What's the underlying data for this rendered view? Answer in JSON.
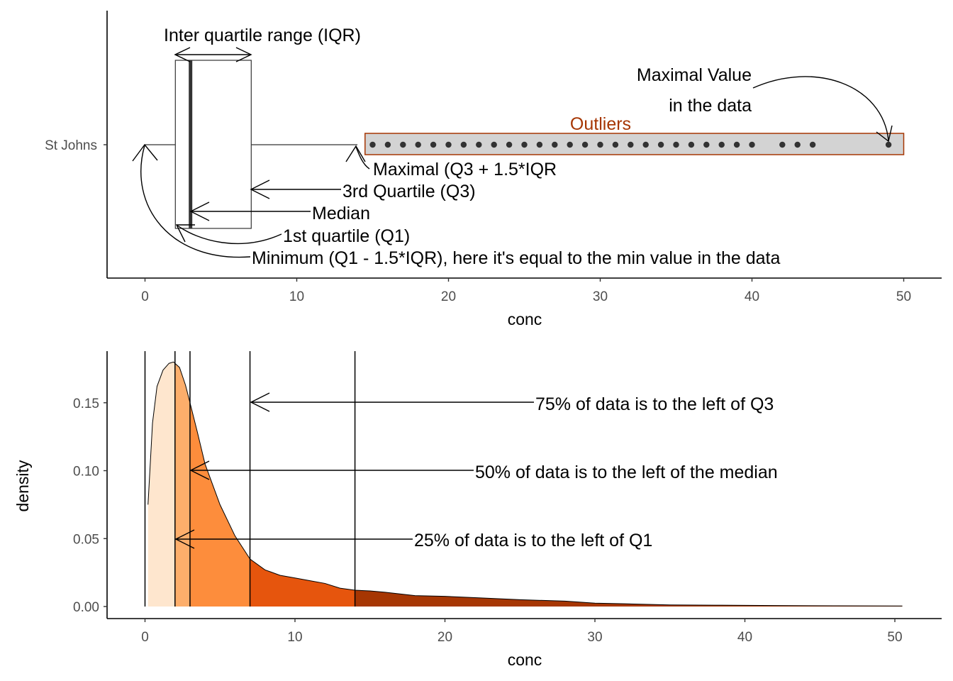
{
  "chart_data": [
    {
      "type": "boxplot",
      "category": "St Johns",
      "xlabel": "conc",
      "xlim": [
        -2.5,
        52.5
      ],
      "xticks": [
        0,
        10,
        20,
        30,
        40,
        50
      ],
      "box": {
        "min": 0,
        "q1": 2,
        "median": 3,
        "q3": 7,
        "max_whisker": 14
      },
      "outliers": [
        15,
        16,
        17,
        18,
        19,
        20,
        21,
        22,
        23,
        24,
        25,
        26,
        27,
        28,
        29,
        30,
        31,
        32,
        33,
        34,
        35,
        36,
        37,
        38,
        39,
        40,
        42,
        43,
        44,
        49
      ],
      "outlier_region": [
        14.5,
        50
      ],
      "colors": {
        "outlier_label": "#A63603",
        "outlier_fill": "#d3d3d3",
        "outlier_border": "#A63603",
        "points": "#333333"
      },
      "annotations": {
        "iqr": "Inter quartile range (IQR)",
        "max_value_line1": "Maximal Value",
        "max_value_line2": "in the data",
        "outliers": "Outliers",
        "maximal": "Maximal (Q3 + 1.5*IQR",
        "q3": "3rd Quartile (Q3)",
        "median": "Median",
        "q1": "1st quartile (Q1)",
        "minimum": "Minimum (Q1 - 1.5*IQR), here it's equal to the min value in the data"
      }
    },
    {
      "type": "area",
      "xlabel": "conc",
      "ylabel": "density",
      "xlim": [
        -2.5,
        52.5
      ],
      "ylim": [
        0,
        0.185
      ],
      "xticks": [
        0,
        10,
        20,
        30,
        40,
        50
      ],
      "yticks": [
        "0.00",
        "0.05",
        "0.10",
        "0.15"
      ],
      "density": {
        "x": [
          0.2,
          0.5,
          0.8,
          1.2,
          1.6,
          1.9,
          2.3,
          2.7,
          3.0,
          3.5,
          4.0,
          5.0,
          6.0,
          7.0,
          8.0,
          9.0,
          10.0,
          11.0,
          12.0,
          13.0,
          14.0,
          15.0,
          16.0,
          18.0,
          20.0,
          22.0,
          25.0,
          28.0,
          30.0,
          32.0,
          35.0,
          38.0,
          42.0,
          46.0,
          50.5
        ],
        "y": [
          0.075,
          0.135,
          0.162,
          0.174,
          0.179,
          0.18,
          0.176,
          0.163,
          0.15,
          0.128,
          0.105,
          0.075,
          0.052,
          0.035,
          0.027,
          0.023,
          0.021,
          0.019,
          0.017,
          0.0135,
          0.012,
          0.0115,
          0.0105,
          0.008,
          0.0075,
          0.0065,
          0.005,
          0.004,
          0.0025,
          0.002,
          0.0012,
          0.001,
          0.0007,
          0.0005,
          0.0004
        ]
      },
      "breaks": [
        0,
        2,
        3,
        7,
        14
      ],
      "segment_colors": [
        "#FEE6CE",
        "#FDAE6B",
        "#FD8D3C",
        "#E6550D",
        "#A63603"
      ],
      "annotations": {
        "q3": "75% of data is to the left of Q3",
        "median": "50% of data is to the left of the median",
        "q1": "25% of data is to the left of Q1"
      }
    }
  ]
}
